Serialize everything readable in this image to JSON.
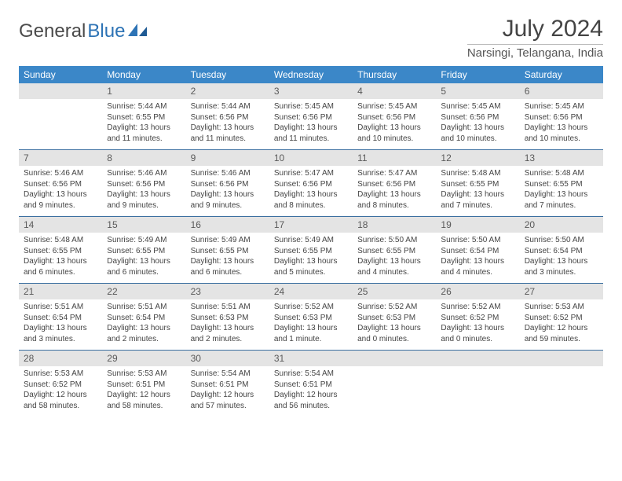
{
  "brand": {
    "part1": "General",
    "part2": "Blue"
  },
  "title": "July 2024",
  "location": "Narsingi, Telangana, India",
  "colors": {
    "header_bg": "#3b87c8",
    "header_fg": "#ffffff",
    "daynum_bg": "#e4e4e4",
    "daynum_fg": "#5a5a5a",
    "week_divider": "#3b6fa0",
    "text": "#444444",
    "brand_blue": "#2d73b5",
    "brand_grey": "#4a4a4a"
  },
  "dayNames": [
    "Sunday",
    "Monday",
    "Tuesday",
    "Wednesday",
    "Thursday",
    "Friday",
    "Saturday"
  ],
  "weeks": [
    [
      null,
      {
        "n": "1",
        "sr": "5:44 AM",
        "ss": "6:55 PM",
        "dl": "13 hours and 11 minutes."
      },
      {
        "n": "2",
        "sr": "5:44 AM",
        "ss": "6:56 PM",
        "dl": "13 hours and 11 minutes."
      },
      {
        "n": "3",
        "sr": "5:45 AM",
        "ss": "6:56 PM",
        "dl": "13 hours and 11 minutes."
      },
      {
        "n": "4",
        "sr": "5:45 AM",
        "ss": "6:56 PM",
        "dl": "13 hours and 10 minutes."
      },
      {
        "n": "5",
        "sr": "5:45 AM",
        "ss": "6:56 PM",
        "dl": "13 hours and 10 minutes."
      },
      {
        "n": "6",
        "sr": "5:45 AM",
        "ss": "6:56 PM",
        "dl": "13 hours and 10 minutes."
      }
    ],
    [
      {
        "n": "7",
        "sr": "5:46 AM",
        "ss": "6:56 PM",
        "dl": "13 hours and 9 minutes."
      },
      {
        "n": "8",
        "sr": "5:46 AM",
        "ss": "6:56 PM",
        "dl": "13 hours and 9 minutes."
      },
      {
        "n": "9",
        "sr": "5:46 AM",
        "ss": "6:56 PM",
        "dl": "13 hours and 9 minutes."
      },
      {
        "n": "10",
        "sr": "5:47 AM",
        "ss": "6:56 PM",
        "dl": "13 hours and 8 minutes."
      },
      {
        "n": "11",
        "sr": "5:47 AM",
        "ss": "6:56 PM",
        "dl": "13 hours and 8 minutes."
      },
      {
        "n": "12",
        "sr": "5:48 AM",
        "ss": "6:55 PM",
        "dl": "13 hours and 7 minutes."
      },
      {
        "n": "13",
        "sr": "5:48 AM",
        "ss": "6:55 PM",
        "dl": "13 hours and 7 minutes."
      }
    ],
    [
      {
        "n": "14",
        "sr": "5:48 AM",
        "ss": "6:55 PM",
        "dl": "13 hours and 6 minutes."
      },
      {
        "n": "15",
        "sr": "5:49 AM",
        "ss": "6:55 PM",
        "dl": "13 hours and 6 minutes."
      },
      {
        "n": "16",
        "sr": "5:49 AM",
        "ss": "6:55 PM",
        "dl": "13 hours and 6 minutes."
      },
      {
        "n": "17",
        "sr": "5:49 AM",
        "ss": "6:55 PM",
        "dl": "13 hours and 5 minutes."
      },
      {
        "n": "18",
        "sr": "5:50 AM",
        "ss": "6:55 PM",
        "dl": "13 hours and 4 minutes."
      },
      {
        "n": "19",
        "sr": "5:50 AM",
        "ss": "6:54 PM",
        "dl": "13 hours and 4 minutes."
      },
      {
        "n": "20",
        "sr": "5:50 AM",
        "ss": "6:54 PM",
        "dl": "13 hours and 3 minutes."
      }
    ],
    [
      {
        "n": "21",
        "sr": "5:51 AM",
        "ss": "6:54 PM",
        "dl": "13 hours and 3 minutes."
      },
      {
        "n": "22",
        "sr": "5:51 AM",
        "ss": "6:54 PM",
        "dl": "13 hours and 2 minutes."
      },
      {
        "n": "23",
        "sr": "5:51 AM",
        "ss": "6:53 PM",
        "dl": "13 hours and 2 minutes."
      },
      {
        "n": "24",
        "sr": "5:52 AM",
        "ss": "6:53 PM",
        "dl": "13 hours and 1 minute."
      },
      {
        "n": "25",
        "sr": "5:52 AM",
        "ss": "6:53 PM",
        "dl": "13 hours and 0 minutes."
      },
      {
        "n": "26",
        "sr": "5:52 AM",
        "ss": "6:52 PM",
        "dl": "13 hours and 0 minutes."
      },
      {
        "n": "27",
        "sr": "5:53 AM",
        "ss": "6:52 PM",
        "dl": "12 hours and 59 minutes."
      }
    ],
    [
      {
        "n": "28",
        "sr": "5:53 AM",
        "ss": "6:52 PM",
        "dl": "12 hours and 58 minutes."
      },
      {
        "n": "29",
        "sr": "5:53 AM",
        "ss": "6:51 PM",
        "dl": "12 hours and 58 minutes."
      },
      {
        "n": "30",
        "sr": "5:54 AM",
        "ss": "6:51 PM",
        "dl": "12 hours and 57 minutes."
      },
      {
        "n": "31",
        "sr": "5:54 AM",
        "ss": "6:51 PM",
        "dl": "12 hours and 56 minutes."
      },
      null,
      null,
      null
    ]
  ],
  "labels": {
    "sunrise": "Sunrise:",
    "sunset": "Sunset:",
    "daylight": "Daylight:"
  }
}
